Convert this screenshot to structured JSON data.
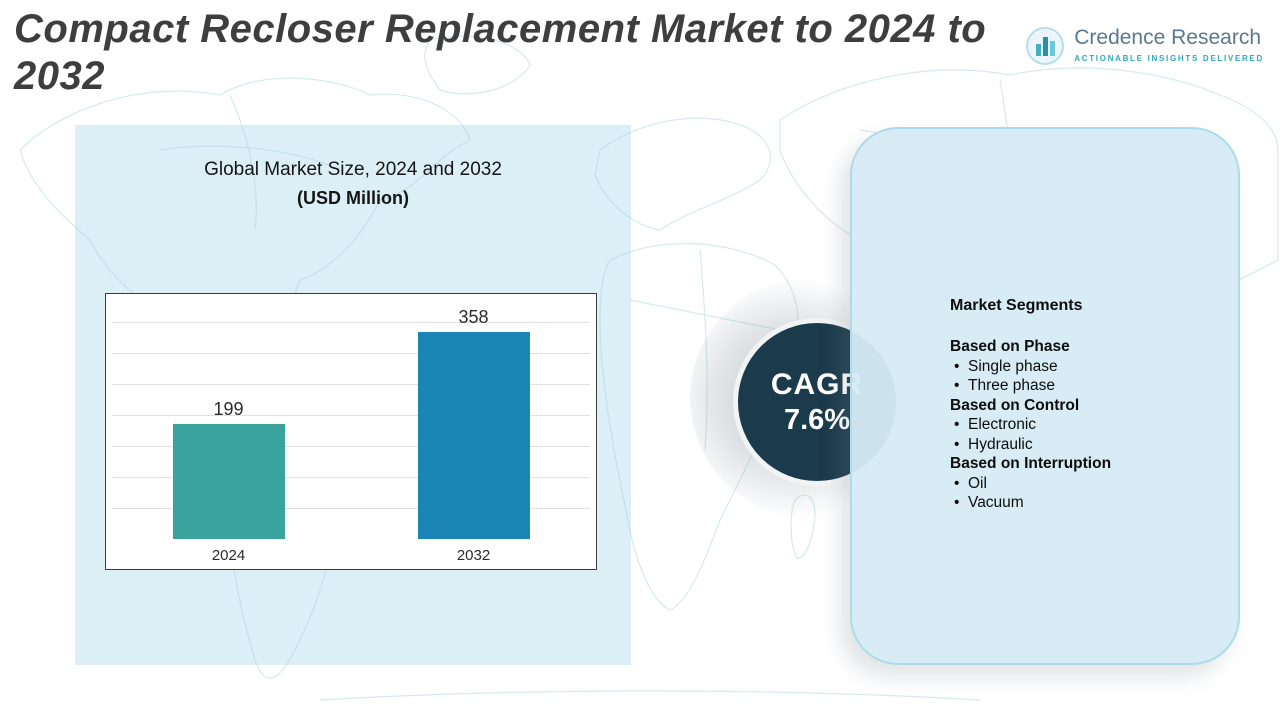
{
  "header": {
    "title": "Compact Recloser Replacement Market to 2024 to 2032"
  },
  "logo": {
    "name": "Credence Research",
    "tagline": "Actionable Insights Delivered"
  },
  "chart_panel": {
    "title_line1": "Global Market Size, 2024 and 2032",
    "title_line2": "(USD Million)"
  },
  "chart_data": {
    "type": "bar",
    "title": "Global Market Size, 2024 and 2032 (USD Million)",
    "categories": [
      "2024",
      "2032"
    ],
    "values": [
      199,
      358
    ],
    "bar_colors": [
      "#3aa39e",
      "#1b86b5"
    ],
    "xlabel": "",
    "ylabel": "",
    "ylim": [
      0,
      400
    ],
    "grid": true,
    "legend": "none"
  },
  "cagr": {
    "label": "CAGR",
    "value": "7.6%"
  },
  "segments": {
    "heading": "Market Segments",
    "groups": [
      {
        "title": "Based on Phase",
        "items": [
          "Single phase",
          "Three phase"
        ]
      },
      {
        "title": "Based on Control",
        "items": [
          "Electronic",
          "Hydraulic"
        ]
      },
      {
        "title": "Based on Interruption",
        "items": [
          "Oil",
          "Vacuum"
        ]
      }
    ]
  },
  "colors": {
    "accent_teal": "#3aa39e",
    "accent_blue": "#1b86b5",
    "cagr_circle": "#1b3a4c",
    "panel_blue": "#d6ebf6",
    "map_line": "#c6e4ea",
    "title_gray": "#3e3e3e",
    "logo_blue_gray": "#5a7890",
    "logo_teal": "#2fa9bd"
  }
}
